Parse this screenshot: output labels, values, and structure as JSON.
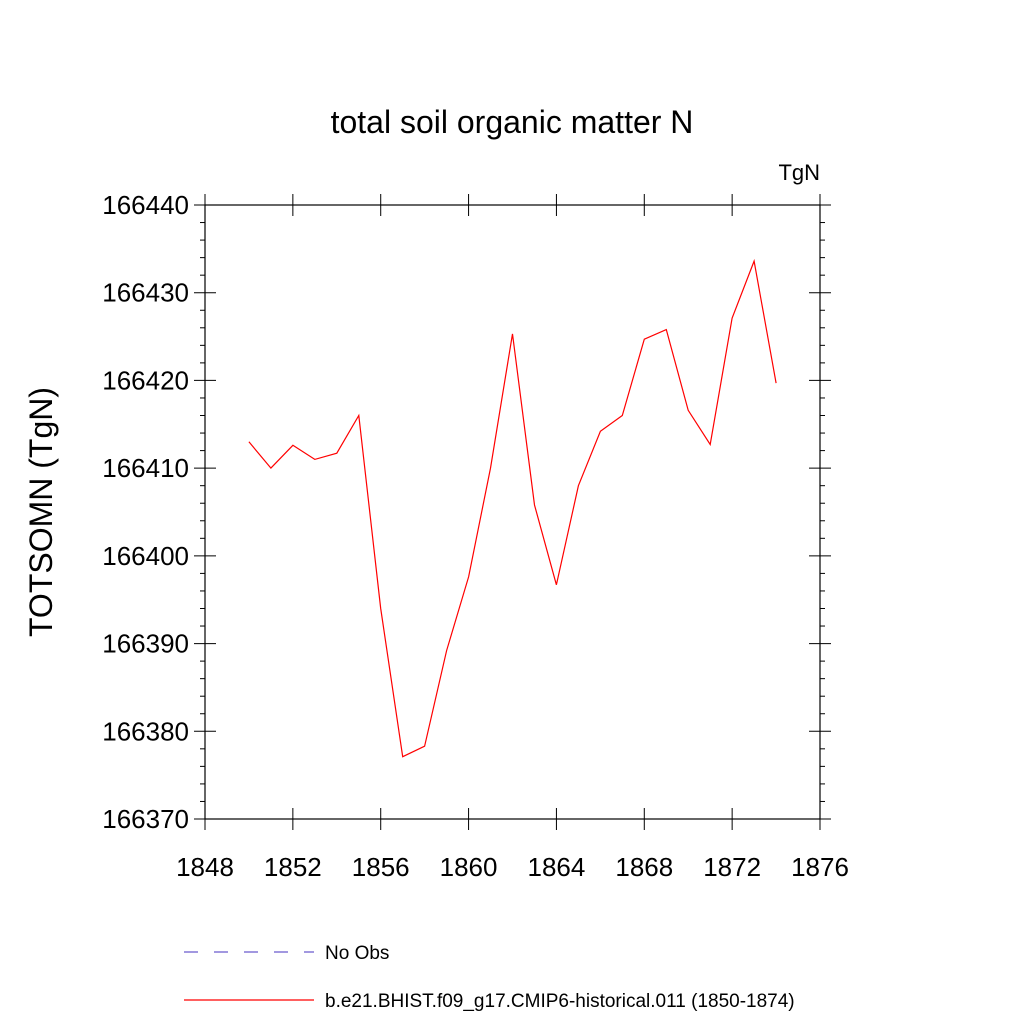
{
  "chart_data": {
    "type": "line",
    "title": "total soil organic matter N",
    "units_label": "TgN",
    "ylabel": "TOTSOMN  (TgN)",
    "xlabel": "",
    "xlim": [
      1848,
      1876
    ],
    "ylim": [
      166370,
      166440
    ],
    "x_ticks": [
      1848,
      1852,
      1856,
      1860,
      1864,
      1868,
      1872,
      1876
    ],
    "y_ticks": [
      166370,
      166380,
      166390,
      166400,
      166410,
      166420,
      166430,
      166440
    ],
    "grid": false,
    "legend_position": "bottom",
    "series": [
      {
        "name": "No Obs",
        "color": "#6a5acd",
        "dash": true,
        "x": [],
        "y": []
      },
      {
        "name": "b.e21.BHIST.f09_g17.CMIP6-historical.011 (1850-1874)",
        "color": "#ff0000",
        "dash": false,
        "x": [
          1850,
          1851,
          1852,
          1853,
          1854,
          1855,
          1856,
          1857,
          1858,
          1859,
          1860,
          1861,
          1862,
          1863,
          1864,
          1865,
          1866,
          1867,
          1868,
          1869,
          1870,
          1871,
          1872,
          1873,
          1874
        ],
        "y": [
          166413.0,
          166410.0,
          166412.6,
          166411.0,
          166411.7,
          166416.0,
          166394.0,
          166377.1,
          166378.3,
          166389.2,
          166397.6,
          166410.0,
          166425.3,
          166405.8,
          166396.7,
          166408.0,
          166414.2,
          166416.0,
          166424.7,
          166425.8,
          166416.6,
          166412.7,
          166427.1,
          166433.6,
          166419.7
        ]
      }
    ]
  }
}
